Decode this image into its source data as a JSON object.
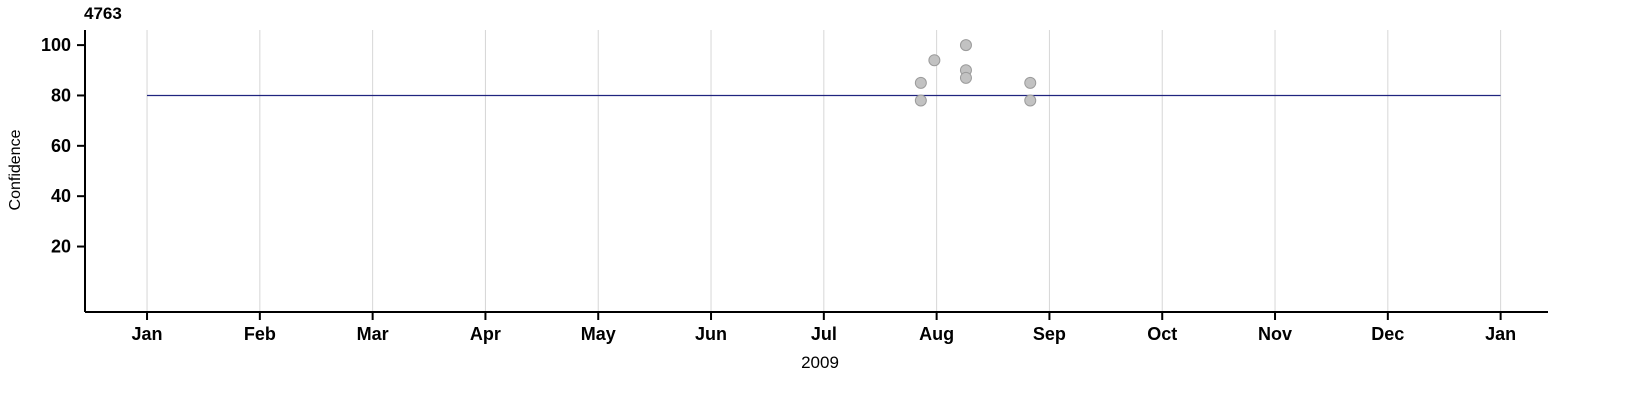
{
  "chart_data": {
    "type": "scatter",
    "title": "4763",
    "xlabel": "2009",
    "ylabel": "Confidence",
    "x_unit": "months since Jan 2009 (0 = Jan 2009, 12 = Jan 2010)",
    "x_tick_positions": [
      0,
      1,
      2,
      3,
      4,
      5,
      6,
      7,
      8,
      9,
      10,
      11,
      12
    ],
    "x_tick_labels": [
      "Jan",
      "Feb",
      "Mar",
      "Apr",
      "May",
      "Jun",
      "Jul",
      "Aug",
      "Sep",
      "Oct",
      "Nov",
      "Dec",
      "Jan"
    ],
    "y_tick_values": [
      20,
      40,
      60,
      80,
      100
    ],
    "xlim": [
      -0.55,
      12.42
    ],
    "ylim": [
      -6,
      106
    ],
    "grid": {
      "vertical": true,
      "horizontal": false,
      "color": "#d6d6d6"
    },
    "legend": "none",
    "axis_color": "#000000",
    "reference_line": {
      "y": 80,
      "x_start": 0,
      "x_end": 12,
      "color": "#20247f",
      "width": 1.3
    },
    "point_style": {
      "fill": "#c2c2c2",
      "stroke": "#9b9b9b",
      "radius": 5.5
    },
    "points": [
      {
        "x": 6.86,
        "y": 85
      },
      {
        "x": 6.86,
        "y": 78
      },
      {
        "x": 6.98,
        "y": 94
      },
      {
        "x": 7.26,
        "y": 100
      },
      {
        "x": 7.26,
        "y": 90
      },
      {
        "x": 7.26,
        "y": 87
      },
      {
        "x": 7.83,
        "y": 85
      },
      {
        "x": 7.83,
        "y": 78
      }
    ]
  }
}
